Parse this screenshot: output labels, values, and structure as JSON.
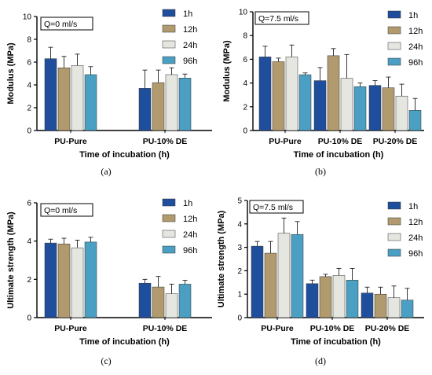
{
  "colors": {
    "1h": "#1f4e9c",
    "12h": "#b09a6e",
    "24h": "#e6e6e1",
    "96h": "#4a9fc2"
  },
  "chart_data": [
    {
      "type": "bar",
      "panel_label": "(a)",
      "flow_label": "Q=0 ml/s",
      "ylabel": "Modulus (MPa)",
      "xlabel": "Time of incubation (h)",
      "ylim": [
        0,
        10
      ],
      "yticks": [
        "0",
        "2",
        "4",
        "6",
        "8",
        "10"
      ],
      "categories": [
        "PU-Pure",
        "PU-10% DE"
      ],
      "legend_position": "top-right",
      "series": [
        {
          "name": "1h",
          "values": [
            6.3,
            3.7
          ],
          "errors": [
            1.0,
            1.6
          ]
        },
        {
          "name": "12h",
          "values": [
            5.5,
            4.2
          ],
          "errors": [
            1.0,
            1.1
          ]
        },
        {
          "name": "24h",
          "values": [
            5.7,
            4.9
          ],
          "errors": [
            1.0,
            0.6
          ]
        },
        {
          "name": "96h",
          "values": [
            4.9,
            4.6
          ],
          "errors": [
            0.7,
            0.35
          ]
        }
      ]
    },
    {
      "type": "bar",
      "panel_label": "(b)",
      "flow_label": "Q=7.5 ml/s",
      "ylabel": "Modulus (MPa)",
      "xlabel": "Time of incubation (h)",
      "ylim": [
        0,
        10
      ],
      "yticks": [
        "0",
        "2",
        "4",
        "6",
        "8",
        "10"
      ],
      "categories": [
        "PU-Pure",
        "PU-10% DE",
        "PU-20% DE"
      ],
      "legend_position": "top-right",
      "series": [
        {
          "name": "1h",
          "values": [
            6.2,
            4.2,
            3.8
          ],
          "errors": [
            0.9,
            1.1,
            0.4
          ]
        },
        {
          "name": "12h",
          "values": [
            5.8,
            6.3,
            3.6
          ],
          "errors": [
            0.3,
            0.6,
            0.9
          ]
        },
        {
          "name": "24h",
          "values": [
            6.2,
            4.4,
            2.9
          ],
          "errors": [
            1.0,
            2.0,
            1.0
          ]
        },
        {
          "name": "96h",
          "values": [
            4.7,
            3.7,
            1.7
          ],
          "errors": [
            0.15,
            0.3,
            1.0
          ]
        }
      ]
    },
    {
      "type": "bar",
      "panel_label": "(c)",
      "flow_label": "Q=0 ml/s",
      "ylabel": "Ultimate strength (MPa)",
      "xlabel": "Time of incubation (h)",
      "ylim": [
        0,
        6
      ],
      "yticks": [
        "0",
        "2",
        "4",
        "6"
      ],
      "categories": [
        "PU-Pure",
        "PU-10% DE"
      ],
      "legend_position": "top-right",
      "series": [
        {
          "name": "1h",
          "values": [
            3.9,
            1.8
          ],
          "errors": [
            0.2,
            0.2
          ]
        },
        {
          "name": "12h",
          "values": [
            3.85,
            1.6
          ],
          "errors": [
            0.3,
            0.55
          ]
        },
        {
          "name": "24h",
          "values": [
            3.65,
            1.25
          ],
          "errors": [
            0.4,
            0.5
          ]
        },
        {
          "name": "96h",
          "values": [
            3.95,
            1.75
          ],
          "errors": [
            0.25,
            0.2
          ]
        }
      ]
    },
    {
      "type": "bar",
      "panel_label": "(d)",
      "flow_label": "Q=7.5 ml/s",
      "ylabel": "Ultimate strength (MPa)",
      "xlabel": "Time of incubation (h)",
      "ylim": [
        0,
        5
      ],
      "yticks": [
        "0",
        "1",
        "2",
        "3",
        "4",
        "5"
      ],
      "categories": [
        "PU-Pure",
        "PU-10% DE",
        "PU-20% DE"
      ],
      "legend_position": "top-right",
      "series": [
        {
          "name": "1h",
          "values": [
            3.05,
            1.45,
            1.05
          ],
          "errors": [
            0.2,
            0.15,
            0.25
          ]
        },
        {
          "name": "12h",
          "values": [
            2.75,
            1.75,
            1.0
          ],
          "errors": [
            0.5,
            0.1,
            0.3
          ]
        },
        {
          "name": "24h",
          "values": [
            3.6,
            1.8,
            0.85
          ],
          "errors": [
            0.65,
            0.3,
            0.5
          ]
        },
        {
          "name": "96h",
          "values": [
            3.55,
            1.6,
            0.75
          ],
          "errors": [
            0.55,
            0.5,
            0.5
          ]
        }
      ]
    }
  ]
}
